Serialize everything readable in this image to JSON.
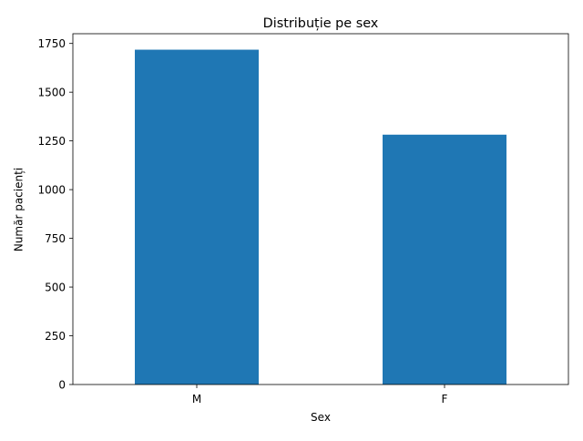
{
  "chart_data": {
    "type": "bar",
    "title": "Distribuție pe sex",
    "xlabel": "Sex",
    "ylabel": "Număr pacienți",
    "categories": [
      "M",
      "F"
    ],
    "values": [
      1718,
      1282
    ],
    "ylim": [
      0,
      1800
    ],
    "yticks": [
      0,
      250,
      500,
      750,
      1000,
      1250,
      1500,
      1750
    ],
    "grid": false,
    "legend": "none",
    "bar_color": "#1f77b4"
  }
}
